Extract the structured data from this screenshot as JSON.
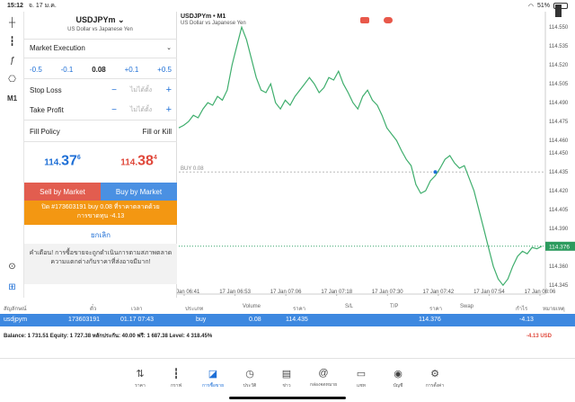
{
  "status": {
    "time": "15:12",
    "date": "จ. 17 ม.ค.",
    "battery": "51%",
    "battery_level": 0.51
  },
  "toolbar": {
    "items": [
      "crosshair-icon",
      "candles-icon",
      "function-icon",
      "objects-icon",
      "M1"
    ],
    "bottom": [
      "zoom-icon",
      "add-icon"
    ]
  },
  "order": {
    "symbol": "USDJPYm",
    "description": "US Dollar vs Japanese Yen",
    "execution": "Market Execution",
    "vol_minus": [
      "-0.5",
      "-0.1"
    ],
    "volume": "0.08",
    "vol_plus": [
      "+0.1",
      "+0.5"
    ],
    "stop_loss_label": "Stop Loss",
    "take_profit_label": "Take Profit",
    "not_set": "ไม่ได้ตั้ง",
    "fill_policy_label": "Fill Policy",
    "fill_policy_value": "Fill or Kill",
    "bid_big": "114.",
    "bid_main": "37",
    "bid_sup": "6",
    "ask_big": "114.",
    "ask_main": "38",
    "ask_sup": "4",
    "sell_label": "Sell by Market",
    "buy_label": "Buy by Market",
    "close_line1": "ปิด #173603191 buy 0.08 ที่ราคาตลาดด้วย",
    "close_line2": "การขาดทุน -4.13",
    "cancel_label": "ยกเลิก",
    "warning": "คำเตือน! การซื้อขายจะถูกดำเนินการตามสภาพตลาด ความแตกต่างกับราคาที่ส่งอาจมีมาก!"
  },
  "chart_data": {
    "type": "line",
    "title": "USDJPYm • M1",
    "subtitle": "US Dollar vs Japanese Yen",
    "y_ticks": [
      "114.550",
      "114.535",
      "114.520",
      "114.505",
      "114.490",
      "114.475",
      "114.460",
      "114.450",
      "114.435",
      "114.420",
      "114.405",
      "114.390",
      "114.376",
      "114.360",
      "114.345"
    ],
    "x_ticks": [
      "17 Jan 06:41",
      "17 Jan 06:53",
      "17 Jan 07:06",
      "17 Jan 07:18",
      "17 Jan 07:30",
      "17 Jan 07:42",
      "17 Jan 07:54",
      "17 Jan 08:06"
    ],
    "ylim": [
      114.338,
      114.558
    ],
    "buy_line_label": "BUY 0.08",
    "buy_line_value": 114.435,
    "current_price": "114.376",
    "current_value": 114.376,
    "series": [
      {
        "values": [
          114.47,
          114.472,
          114.475,
          114.48,
          114.478,
          114.485,
          114.49,
          114.488,
          114.495,
          114.492,
          114.5,
          114.52,
          114.535,
          114.55,
          114.54,
          114.525,
          114.51,
          114.5,
          114.498,
          114.505,
          114.49,
          114.485,
          114.492,
          114.488,
          114.495,
          114.5,
          114.505,
          114.51,
          114.505,
          114.498,
          114.502,
          114.51,
          114.508,
          114.515,
          114.505,
          114.498,
          114.49,
          114.485,
          114.495,
          114.5,
          114.492,
          114.488,
          114.48,
          114.47,
          114.465,
          114.46,
          114.452,
          114.445,
          114.44,
          114.425,
          114.418,
          114.42,
          114.428,
          114.432,
          114.438,
          114.445,
          114.448,
          114.442,
          114.438,
          114.44,
          114.43,
          114.42,
          114.405,
          114.39,
          114.375,
          114.36,
          114.35,
          114.345,
          114.35,
          114.36,
          114.368,
          114.372,
          114.37,
          114.375,
          114.374,
          114.376
        ]
      }
    ]
  },
  "trades": {
    "headers": [
      "สัญลักษณ์",
      "ตั๋ว",
      "เวลา",
      "ประเภท",
      "Volume",
      "ราคา",
      "S/L",
      "T/P",
      "ราคา",
      "Swap",
      "กำไร",
      "หมายเหตุ"
    ],
    "row": {
      "symbol": "usdjpym",
      "ticket": "173603191",
      "time": "01.17 07:43",
      "type": "buy",
      "volume": "0.08",
      "price": "114.435",
      "current": "114.376",
      "profit": "-4.13"
    },
    "balance": "Balance: 1 731.51 Equity: 1 727.38 หลักประกัน: 40.00 ฟรี: 1 687.38 Level: 4 318.45%",
    "total": "-4.13  USD"
  },
  "nav": [
    {
      "label": "ราคา",
      "icon": "quotes-icon"
    },
    {
      "label": "กราฟ",
      "icon": "chart-icon"
    },
    {
      "label": "การซื้อขาย",
      "icon": "trade-icon",
      "active": true
    },
    {
      "label": "ประวัติ",
      "icon": "history-icon"
    },
    {
      "label": "ข่าว",
      "icon": "news-icon"
    },
    {
      "label": "กล่องจดหมาย",
      "icon": "mailbox-icon"
    },
    {
      "label": "แชท",
      "icon": "chat-icon"
    },
    {
      "label": "บัญชี",
      "icon": "account-icon"
    },
    {
      "label": "การตั้งค่า",
      "icon": "settings-icon"
    }
  ]
}
